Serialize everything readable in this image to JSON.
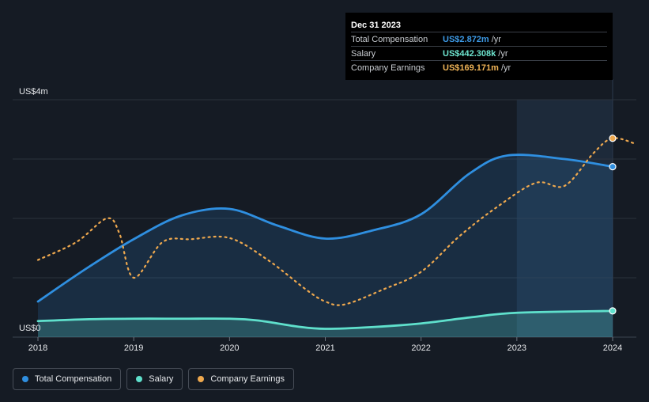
{
  "tooltip": {
    "date": "Dec 31 2023",
    "rows": [
      {
        "name": "Total Compensation",
        "value": "US$2.872m",
        "unit": "/yr",
        "color": "#3d9ae6"
      },
      {
        "name": "Salary",
        "value": "US$442.308k",
        "unit": "/yr",
        "color": "#6ee6d0"
      },
      {
        "name": "Company Earnings",
        "value": "US$169.171m",
        "unit": "/yr",
        "color": "#f0b457"
      }
    ]
  },
  "legend": [
    {
      "label": "Total Compensation",
      "color": "#2f8fe0"
    },
    {
      "label": "Salary",
      "color": "#5fe0cc"
    },
    {
      "label": "Company Earnings",
      "color": "#eea84e"
    }
  ],
  "chart_data": {
    "type": "line",
    "title": "",
    "xlabel": "",
    "ylabel": "",
    "x_ticks": [
      "2018",
      "2019",
      "2020",
      "2021",
      "2022",
      "2023",
      "2024"
    ],
    "y_tick_labels": {
      "top": "US$4m",
      "bottom": "US$0"
    },
    "ylim": [
      0,
      4
    ],
    "highlight_range": [
      2023.0,
      2024.0
    ],
    "series": [
      {
        "name": "Total Compensation",
        "unit": "US$m",
        "color": "#2f8fe0",
        "area": true,
        "points": [
          [
            2018.0,
            0.6
          ],
          [
            2018.5,
            1.15
          ],
          [
            2019.0,
            1.65
          ],
          [
            2019.5,
            2.05
          ],
          [
            2020.0,
            2.16
          ],
          [
            2020.5,
            1.88
          ],
          [
            2021.0,
            1.66
          ],
          [
            2021.5,
            1.8
          ],
          [
            2022.0,
            2.07
          ],
          [
            2022.5,
            2.75
          ],
          [
            2022.9,
            3.06
          ],
          [
            2023.5,
            3.0
          ],
          [
            2024.0,
            2.872
          ]
        ]
      },
      {
        "name": "Salary",
        "unit": "US$m",
        "color": "#5fe0cc",
        "area": true,
        "points": [
          [
            2018.0,
            0.27
          ],
          [
            2018.5,
            0.3
          ],
          [
            2019.0,
            0.31
          ],
          [
            2019.5,
            0.31
          ],
          [
            2020.0,
            0.31
          ],
          [
            2020.3,
            0.28
          ],
          [
            2020.7,
            0.18
          ],
          [
            2021.0,
            0.14
          ],
          [
            2021.5,
            0.17
          ],
          [
            2022.0,
            0.23
          ],
          [
            2022.5,
            0.33
          ],
          [
            2023.0,
            0.41
          ],
          [
            2024.0,
            0.442
          ]
        ]
      },
      {
        "name": "Company Earnings",
        "unit": "relative",
        "color": "#eea84e",
        "dashed": true,
        "points": [
          [
            2018.0,
            1.3
          ],
          [
            2018.4,
            1.6
          ],
          [
            2018.72,
            2.0
          ],
          [
            2018.85,
            1.75
          ],
          [
            2019.0,
            1.0
          ],
          [
            2019.3,
            1.6
          ],
          [
            2019.6,
            1.65
          ],
          [
            2020.0,
            1.67
          ],
          [
            2020.4,
            1.3
          ],
          [
            2020.8,
            0.8
          ],
          [
            2021.0,
            0.6
          ],
          [
            2021.2,
            0.55
          ],
          [
            2021.6,
            0.8
          ],
          [
            2022.0,
            1.1
          ],
          [
            2022.4,
            1.7
          ],
          [
            2022.8,
            2.2
          ],
          [
            2023.2,
            2.6
          ],
          [
            2023.5,
            2.55
          ],
          [
            2023.8,
            3.1
          ],
          [
            2024.0,
            3.35
          ],
          [
            2024.25,
            3.25
          ]
        ]
      }
    ],
    "markers": [
      {
        "series": "Total Compensation",
        "x": 2024.0,
        "y": 2.872,
        "color": "#2f8fe0"
      },
      {
        "series": "Salary",
        "x": 2024.0,
        "y": 0.442,
        "color": "#5fe0cc"
      },
      {
        "series": "Company Earnings",
        "x": 2024.0,
        "y": 3.35,
        "color": "#eea84e"
      }
    ]
  }
}
